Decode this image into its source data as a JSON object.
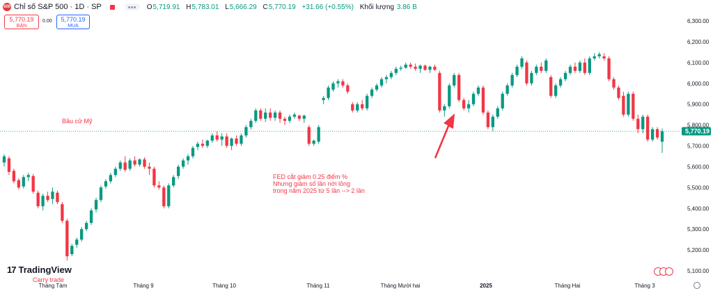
{
  "header": {
    "symbol_badge": "500",
    "symbol_name": "Chỉ số S&P 500 · 1D · SP",
    "ohlc": [
      {
        "key": "O",
        "value": "5,719.91"
      },
      {
        "key": "H",
        "value": "5,783.01"
      },
      {
        "key": "L",
        "value": "5,666.29"
      },
      {
        "key": "C",
        "value": "5,770.19"
      }
    ],
    "change": "+31.66 (+0.55%)",
    "volume_label": "Khối lượng",
    "volume_value": "3.86 B"
  },
  "trade": {
    "sell_price": "5,770.19",
    "sell_label": "BÁN",
    "spread": "0.00",
    "buy_price": "5,770.19",
    "buy_label": "MUA"
  },
  "branding": {
    "name": "TradingView",
    "mark": "17"
  },
  "colors": {
    "up": "#089981",
    "down": "#f23645",
    "annotation": "#f23645",
    "price_tag": "#089981"
  },
  "icons": [
    "gear-icon",
    "flag-icon"
  ],
  "chart_data": {
    "type": "candlestick",
    "y_ticks": [
      "5,100.00",
      "5,200.00",
      "5,300.00",
      "5,400.00",
      "5,500.00",
      "5,600.00",
      "5,700.00",
      "5,800.00",
      "5,900.00",
      "6,000.00",
      "6,100.00",
      "6,200.00",
      "6,300.00"
    ],
    "ylim": [
      5070,
      6340
    ],
    "x_ticks": [
      "Tháng Tám",
      "Tháng 9",
      "Tháng 10",
      "Tháng 11",
      "Tháng Mười hai",
      "2025",
      "Tháng Hai",
      "Tháng 3"
    ],
    "last_price": 5770.19,
    "last_price_label": "5,770.19",
    "annotations": {
      "election": "Bầu cử Mỹ",
      "fed_line1": "FED cắt giảm 0.25 điểm %",
      "fed_line2": "Nhưng giảm số lần nới lỏng",
      "fed_line3": "trong năm 2025 từ 5 lần --> 2 lần",
      "carry": "Carry trade"
    },
    "candles": [
      {
        "o": 5620,
        "h": 5660,
        "l": 5600,
        "c": 5650
      },
      {
        "o": 5640,
        "h": 5650,
        "l": 5560,
        "c": 5575
      },
      {
        "o": 5580,
        "h": 5590,
        "l": 5520,
        "c": 5530
      },
      {
        "o": 5535,
        "h": 5545,
        "l": 5490,
        "c": 5500
      },
      {
        "o": 5505,
        "h": 5560,
        "l": 5495,
        "c": 5550
      },
      {
        "o": 5550,
        "h": 5570,
        "l": 5530,
        "c": 5560
      },
      {
        "o": 5555,
        "h": 5565,
        "l": 5470,
        "c": 5480
      },
      {
        "o": 5475,
        "h": 5485,
        "l": 5400,
        "c": 5410
      },
      {
        "o": 5410,
        "h": 5470,
        "l": 5390,
        "c": 5460
      },
      {
        "o": 5460,
        "h": 5480,
        "l": 5430,
        "c": 5440
      },
      {
        "o": 5445,
        "h": 5500,
        "l": 5420,
        "c": 5480
      },
      {
        "o": 5475,
        "h": 5485,
        "l": 5420,
        "c": 5430
      },
      {
        "o": 5420,
        "h": 5430,
        "l": 5330,
        "c": 5340
      },
      {
        "o": 5340,
        "h": 5350,
        "l": 5150,
        "c": 5170
      },
      {
        "o": 5180,
        "h": 5230,
        "l": 5170,
        "c": 5220
      },
      {
        "o": 5225,
        "h": 5260,
        "l": 5210,
        "c": 5250
      },
      {
        "o": 5250,
        "h": 5310,
        "l": 5240,
        "c": 5300
      },
      {
        "o": 5300,
        "h": 5340,
        "l": 5290,
        "c": 5330
      },
      {
        "o": 5330,
        "h": 5400,
        "l": 5320,
        "c": 5390
      },
      {
        "o": 5395,
        "h": 5450,
        "l": 5380,
        "c": 5440
      },
      {
        "o": 5440,
        "h": 5510,
        "l": 5430,
        "c": 5500
      },
      {
        "o": 5505,
        "h": 5540,
        "l": 5495,
        "c": 5530
      },
      {
        "o": 5530,
        "h": 5570,
        "l": 5520,
        "c": 5560
      },
      {
        "o": 5560,
        "h": 5600,
        "l": 5550,
        "c": 5590
      },
      {
        "o": 5590,
        "h": 5630,
        "l": 5580,
        "c": 5620
      },
      {
        "o": 5620,
        "h": 5650,
        "l": 5575,
        "c": 5585
      },
      {
        "o": 5590,
        "h": 5640,
        "l": 5580,
        "c": 5630
      },
      {
        "o": 5630,
        "h": 5650,
        "l": 5600,
        "c": 5610
      },
      {
        "o": 5610,
        "h": 5640,
        "l": 5600,
        "c": 5635
      },
      {
        "o": 5635,
        "h": 5645,
        "l": 5590,
        "c": 5600
      },
      {
        "o": 5600,
        "h": 5620,
        "l": 5560,
        "c": 5590
      },
      {
        "o": 5590,
        "h": 5600,
        "l": 5500,
        "c": 5510
      },
      {
        "o": 5510,
        "h": 5530,
        "l": 5490,
        "c": 5500
      },
      {
        "o": 5500,
        "h": 5510,
        "l": 5400,
        "c": 5410
      },
      {
        "o": 5410,
        "h": 5520,
        "l": 5400,
        "c": 5510
      },
      {
        "o": 5510,
        "h": 5560,
        "l": 5500,
        "c": 5550
      },
      {
        "o": 5555,
        "h": 5610,
        "l": 5540,
        "c": 5600
      },
      {
        "o": 5600,
        "h": 5640,
        "l": 5590,
        "c": 5630
      },
      {
        "o": 5630,
        "h": 5660,
        "l": 5610,
        "c": 5650
      },
      {
        "o": 5650,
        "h": 5700,
        "l": 5640,
        "c": 5690
      },
      {
        "o": 5695,
        "h": 5720,
        "l": 5680,
        "c": 5710
      },
      {
        "o": 5710,
        "h": 5730,
        "l": 5690,
        "c": 5700
      },
      {
        "o": 5700,
        "h": 5730,
        "l": 5690,
        "c": 5725
      },
      {
        "o": 5725,
        "h": 5760,
        "l": 5715,
        "c": 5750
      },
      {
        "o": 5750,
        "h": 5770,
        "l": 5720,
        "c": 5730
      },
      {
        "o": 5730,
        "h": 5760,
        "l": 5700,
        "c": 5745
      },
      {
        "o": 5745,
        "h": 5760,
        "l": 5690,
        "c": 5700
      },
      {
        "o": 5700,
        "h": 5740,
        "l": 5680,
        "c": 5735
      },
      {
        "o": 5735,
        "h": 5750,
        "l": 5700,
        "c": 5710
      },
      {
        "o": 5710,
        "h": 5760,
        "l": 5700,
        "c": 5750
      },
      {
        "o": 5750,
        "h": 5800,
        "l": 5740,
        "c": 5790
      },
      {
        "o": 5790,
        "h": 5830,
        "l": 5780,
        "c": 5820
      },
      {
        "o": 5820,
        "h": 5880,
        "l": 5810,
        "c": 5870
      },
      {
        "o": 5870,
        "h": 5880,
        "l": 5820,
        "c": 5830
      },
      {
        "o": 5830,
        "h": 5880,
        "l": 5815,
        "c": 5860
      },
      {
        "o": 5860,
        "h": 5880,
        "l": 5820,
        "c": 5835
      },
      {
        "o": 5835,
        "h": 5870,
        "l": 5820,
        "c": 5860
      },
      {
        "o": 5860,
        "h": 5870,
        "l": 5810,
        "c": 5830
      },
      {
        "o": 5830,
        "h": 5840,
        "l": 5800,
        "c": 5820
      },
      {
        "o": 5820,
        "h": 5850,
        "l": 5810,
        "c": 5840
      },
      {
        "o": 5840,
        "h": 5860,
        "l": 5830,
        "c": 5850
      },
      {
        "o": 5845,
        "h": 5850,
        "l": 5820,
        "c": 5830
      },
      {
        "o": 5830,
        "h": 5850,
        "l": 5810,
        "c": 5845
      },
      {
        "o": 5790,
        "h": 5800,
        "l": 5700,
        "c": 5710
      },
      {
        "o": 5710,
        "h": 5730,
        "l": 5700,
        "c": 5725
      },
      {
        "o": 5720,
        "h": 5800,
        "l": 5710,
        "c": 5790
      },
      {
        "o": 5920,
        "h": 5940,
        "l": 5900,
        "c": 5930
      },
      {
        "o": 5930,
        "h": 5990,
        "l": 5920,
        "c": 5980
      },
      {
        "o": 5970,
        "h": 6010,
        "l": 5960,
        "c": 6000
      },
      {
        "o": 6000,
        "h": 6020,
        "l": 5980,
        "c": 6010
      },
      {
        "o": 6010,
        "h": 6020,
        "l": 5980,
        "c": 5990
      },
      {
        "o": 5990,
        "h": 6000,
        "l": 5950,
        "c": 5960
      },
      {
        "o": 5900,
        "h": 5910,
        "l": 5860,
        "c": 5870
      },
      {
        "o": 5870,
        "h": 5910,
        "l": 5860,
        "c": 5900
      },
      {
        "o": 5900,
        "h": 5920,
        "l": 5870,
        "c": 5880
      },
      {
        "o": 5880,
        "h": 5950,
        "l": 5870,
        "c": 5940
      },
      {
        "o": 5940,
        "h": 5980,
        "l": 5930,
        "c": 5970
      },
      {
        "o": 5970,
        "h": 6000,
        "l": 5960,
        "c": 5990
      },
      {
        "o": 5990,
        "h": 6030,
        "l": 5980,
        "c": 6020
      },
      {
        "o": 6020,
        "h": 6040,
        "l": 6000,
        "c": 6030
      },
      {
        "o": 6030,
        "h": 6060,
        "l": 6020,
        "c": 6050
      },
      {
        "o": 6050,
        "h": 6080,
        "l": 6040,
        "c": 6070
      },
      {
        "o": 6070,
        "h": 6085,
        "l": 6060,
        "c": 6075
      },
      {
        "o": 6075,
        "h": 6100,
        "l": 6070,
        "c": 6090
      },
      {
        "o": 6090,
        "h": 6100,
        "l": 6070,
        "c": 6080
      },
      {
        "o": 6080,
        "h": 6095,
        "l": 6060,
        "c": 6070
      },
      {
        "o": 6070,
        "h": 6090,
        "l": 6050,
        "c": 6085
      },
      {
        "o": 6085,
        "h": 6090,
        "l": 6060,
        "c": 6065
      },
      {
        "o": 6065,
        "h": 6085,
        "l": 6050,
        "c": 6080
      },
      {
        "o": 6080,
        "h": 6090,
        "l": 6060,
        "c": 6065
      },
      {
        "o": 6050,
        "h": 6060,
        "l": 5860,
        "c": 5870
      },
      {
        "o": 5870,
        "h": 5900,
        "l": 5840,
        "c": 5890
      },
      {
        "o": 5890,
        "h": 6000,
        "l": 5880,
        "c": 5990
      },
      {
        "o": 5990,
        "h": 6050,
        "l": 5980,
        "c": 6040
      },
      {
        "o": 6040,
        "h": 6050,
        "l": 5910,
        "c": 5920
      },
      {
        "o": 5920,
        "h": 5930,
        "l": 5870,
        "c": 5880
      },
      {
        "o": 5880,
        "h": 5920,
        "l": 5860,
        "c": 5900
      },
      {
        "o": 5900,
        "h": 5960,
        "l": 5890,
        "c": 5950
      },
      {
        "o": 5950,
        "h": 5990,
        "l": 5940,
        "c": 5980
      },
      {
        "o": 5980,
        "h": 5990,
        "l": 5850,
        "c": 5860
      },
      {
        "o": 5860,
        "h": 5870,
        "l": 5780,
        "c": 5790
      },
      {
        "o": 5790,
        "h": 5850,
        "l": 5770,
        "c": 5840
      },
      {
        "o": 5840,
        "h": 5890,
        "l": 5830,
        "c": 5880
      },
      {
        "o": 5880,
        "h": 5960,
        "l": 5870,
        "c": 5950
      },
      {
        "o": 5950,
        "h": 6000,
        "l": 5940,
        "c": 5990
      },
      {
        "o": 5990,
        "h": 6050,
        "l": 5980,
        "c": 6040
      },
      {
        "o": 6040,
        "h": 6090,
        "l": 6030,
        "c": 6080
      },
      {
        "o": 6080,
        "h": 6130,
        "l": 6070,
        "c": 6120
      },
      {
        "o": 6100,
        "h": 6110,
        "l": 5990,
        "c": 6000
      },
      {
        "o": 6000,
        "h": 6060,
        "l": 5990,
        "c": 6050
      },
      {
        "o": 6050,
        "h": 6090,
        "l": 6040,
        "c": 6080
      },
      {
        "o": 6080,
        "h": 6100,
        "l": 6050,
        "c": 6060
      },
      {
        "o": 6060,
        "h": 6120,
        "l": 6050,
        "c": 6110
      },
      {
        "o": 6030,
        "h": 6040,
        "l": 5930,
        "c": 5940
      },
      {
        "o": 5940,
        "h": 6000,
        "l": 5930,
        "c": 5990
      },
      {
        "o": 5990,
        "h": 6030,
        "l": 5980,
        "c": 6020
      },
      {
        "o": 6020,
        "h": 6060,
        "l": 6010,
        "c": 6050
      },
      {
        "o": 6050,
        "h": 6090,
        "l": 6040,
        "c": 6080
      },
      {
        "o": 6080,
        "h": 6100,
        "l": 6050,
        "c": 6060
      },
      {
        "o": 6060,
        "h": 6110,
        "l": 6050,
        "c": 6100
      },
      {
        "o": 6100,
        "h": 6120,
        "l": 6040,
        "c": 6050
      },
      {
        "o": 6050,
        "h": 6130,
        "l": 6040,
        "c": 6120
      },
      {
        "o": 6120,
        "h": 6145,
        "l": 6110,
        "c": 6130
      },
      {
        "o": 6130,
        "h": 6150,
        "l": 6120,
        "c": 6140
      },
      {
        "o": 6130,
        "h": 6145,
        "l": 6110,
        "c": 6120
      },
      {
        "o": 6120,
        "h": 6130,
        "l": 6010,
        "c": 6020
      },
      {
        "o": 6020,
        "h": 6030,
        "l": 5970,
        "c": 5980
      },
      {
        "o": 5980,
        "h": 5990,
        "l": 5920,
        "c": 5930
      },
      {
        "o": 5940,
        "h": 5960,
        "l": 5840,
        "c": 5850
      },
      {
        "o": 5850,
        "h": 5960,
        "l": 5840,
        "c": 5950
      },
      {
        "o": 5950,
        "h": 5960,
        "l": 5820,
        "c": 5830
      },
      {
        "o": 5830,
        "h": 5850,
        "l": 5760,
        "c": 5780
      },
      {
        "o": 5780,
        "h": 5850,
        "l": 5760,
        "c": 5840
      },
      {
        "o": 5840,
        "h": 5850,
        "l": 5720,
        "c": 5730
      },
      {
        "o": 5730,
        "h": 5790,
        "l": 5720,
        "c": 5780
      },
      {
        "o": 5780,
        "h": 5790,
        "l": 5730,
        "c": 5740
      },
      {
        "o": 5720,
        "h": 5783,
        "l": 5666,
        "c": 5770
      }
    ]
  }
}
